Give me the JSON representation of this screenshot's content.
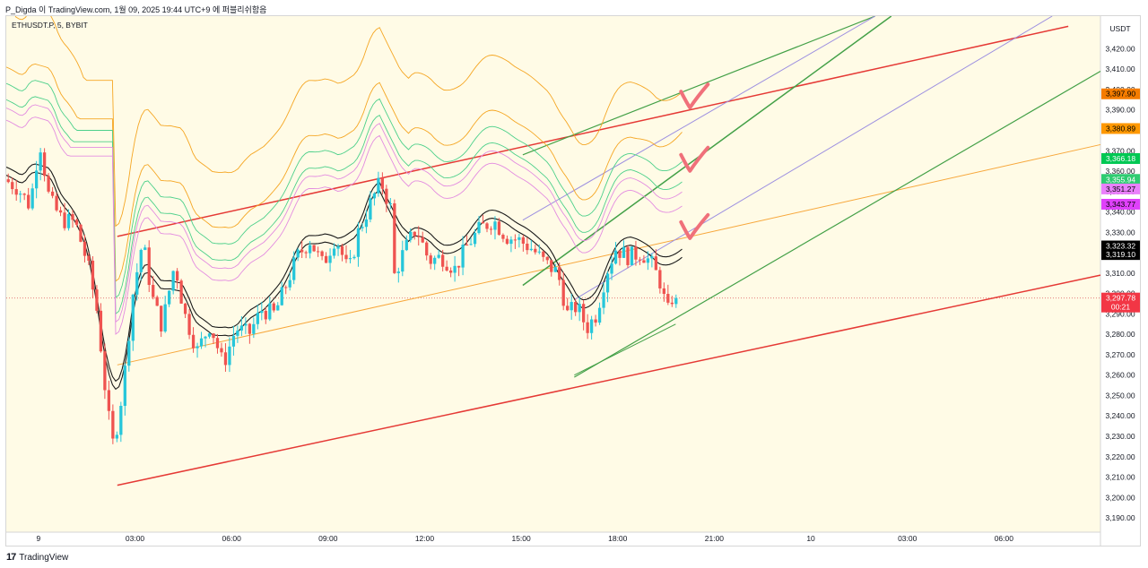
{
  "header": {
    "text": "P_Digda 이 TradingView.com, 1월 09, 2025 19:44 UTC+9 에 퍼블리쉬함음"
  },
  "footer": {
    "logo_glyph": "17",
    "brand": "TradingView"
  },
  "colors": {
    "background": "#fffbe6",
    "candle_up": "#26c6da",
    "candle_down": "#ef5350",
    "channel_red": "#e53935",
    "channel_green": "#43a047",
    "channel_purple": "#9c8fe0",
    "trend_orange": "#f7a73b",
    "band_black": "#1a1a1a",
    "band_orange": "#f5a623",
    "band_green": "#4cd08a",
    "band_pink": "#e38ce0",
    "checkmark": "#f0707a",
    "current_price_line": "#e06b6b"
  },
  "chart_data": {
    "type": "candlestick",
    "symbol_label": "ETHUSDT.P, 5, BYBIT",
    "currency": "USDT",
    "ylim": [
      3183,
      3436
    ],
    "y_ticks": [
      {
        "value": 3190,
        "label": "3,190.00"
      },
      {
        "value": 3200,
        "label": "3,200.00"
      },
      {
        "value": 3210,
        "label": "3,210.00"
      },
      {
        "value": 3220,
        "label": "3,220.00"
      },
      {
        "value": 3230,
        "label": "3,230.00"
      },
      {
        "value": 3240,
        "label": "3,240.00"
      },
      {
        "value": 3250,
        "label": "3,250.00"
      },
      {
        "value": 3260,
        "label": "3,260.00"
      },
      {
        "value": 3270,
        "label": "3,270.00"
      },
      {
        "value": 3280,
        "label": "3,280.00"
      },
      {
        "value": 3290,
        "label": "3,290.00"
      },
      {
        "value": 3300,
        "label": "3,300.00"
      },
      {
        "value": 3310,
        "label": "3,310.00"
      },
      {
        "value": 3320,
        "label": "3,320.00"
      },
      {
        "value": 3330,
        "label": "3,330.00"
      },
      {
        "value": 3340,
        "label": "3,340.00"
      },
      {
        "value": 3350,
        "label": "3,350.00"
      },
      {
        "value": 3360,
        "label": "3,360.00"
      },
      {
        "value": 3370,
        "label": "3,370.00"
      },
      {
        "value": 3380,
        "label": "3,380.00"
      },
      {
        "value": 3390,
        "label": "3,390.00"
      },
      {
        "value": 3400,
        "label": "3,400.00"
      },
      {
        "value": 3410,
        "label": "3,410.00"
      },
      {
        "value": 3420,
        "label": "3,420.00"
      }
    ],
    "x_range_hours": [
      -1,
      33
    ],
    "x_ticks": [
      {
        "hour": 0,
        "label": "9"
      },
      {
        "hour": 3,
        "label": "03:00"
      },
      {
        "hour": 6,
        "label": "06:00"
      },
      {
        "hour": 9,
        "label": "09:00"
      },
      {
        "hour": 12,
        "label": "12:00"
      },
      {
        "hour": 15,
        "label": "15:00"
      },
      {
        "hour": 18,
        "label": "18:00"
      },
      {
        "hour": 21,
        "label": "21:00"
      },
      {
        "hour": 24,
        "label": "10"
      },
      {
        "hour": 27,
        "label": "03:00"
      },
      {
        "hour": 30,
        "label": "06:00"
      }
    ],
    "price_path": [
      [
        -1,
        3356
      ],
      [
        -0.6,
        3352
      ],
      [
        -0.2,
        3343
      ],
      [
        0.1,
        3375
      ],
      [
        0.4,
        3346
      ],
      [
        0.8,
        3336
      ],
      [
        1.2,
        3335
      ],
      [
        1.6,
        3314
      ],
      [
        1.9,
        3290
      ],
      [
        2.1,
        3258
      ],
      [
        2.35,
        3225
      ],
      [
        2.5,
        3235
      ],
      [
        2.7,
        3255
      ],
      [
        3.0,
        3300
      ],
      [
        3.3,
        3326
      ],
      [
        3.6,
        3298
      ],
      [
        3.9,
        3284
      ],
      [
        4.3,
        3315
      ],
      [
        4.6,
        3290
      ],
      [
        5.0,
        3272
      ],
      [
        5.4,
        3285
      ],
      [
        5.8,
        3265
      ],
      [
        6.2,
        3283
      ],
      [
        6.6,
        3280
      ],
      [
        7.0,
        3292
      ],
      [
        7.4,
        3290
      ],
      [
        7.8,
        3306
      ],
      [
        8.1,
        3318
      ],
      [
        8.5,
        3326
      ],
      [
        8.9,
        3314
      ],
      [
        9.3,
        3328
      ],
      [
        9.7,
        3310
      ],
      [
        10.0,
        3330
      ],
      [
        10.4,
        3345
      ],
      [
        10.7,
        3355
      ],
      [
        11.0,
        3342
      ],
      [
        11.1,
        3308
      ],
      [
        11.4,
        3320
      ],
      [
        11.8,
        3332
      ],
      [
        12.2,
        3316
      ],
      [
        12.6,
        3318
      ],
      [
        13.0,
        3312
      ],
      [
        13.4,
        3324
      ],
      [
        13.8,
        3332
      ],
      [
        14.2,
        3336
      ],
      [
        14.6,
        3328
      ],
      [
        15.0,
        3326
      ],
      [
        15.4,
        3322
      ],
      [
        15.8,
        3315
      ],
      [
        16.2,
        3310
      ],
      [
        16.5,
        3290
      ],
      [
        16.8,
        3294
      ],
      [
        17.1,
        3283
      ],
      [
        17.4,
        3290
      ],
      [
        17.7,
        3310
      ],
      [
        18.0,
        3322
      ],
      [
        18.4,
        3318
      ],
      [
        18.8,
        3320
      ],
      [
        19.1,
        3315
      ],
      [
        19.4,
        3305
      ],
      [
        19.6,
        3290
      ],
      [
        19.75,
        3297.78
      ]
    ],
    "band_labels": [
      {
        "value": 3397.9,
        "label": "3,397.90",
        "color": "#f57c00",
        "text_color": "#000000"
      },
      {
        "value": 3380.89,
        "label": "3,380.89",
        "color": "#ff9800",
        "text_color": "#000000"
      },
      {
        "value": 3366.18,
        "label": "3,366.18",
        "color": "#00c853",
        "text_color": "#ffffff"
      },
      {
        "value": 3355.94,
        "label": "3,355.94",
        "color": "#2ecc71",
        "text_color": "#ffffff"
      },
      {
        "value": 3351.27,
        "label": "3,351.27",
        "color": "#ea80fc",
        "text_color": "#000000"
      },
      {
        "value": 3343.77,
        "label": "3,343.77",
        "color": "#e040fb",
        "text_color": "#000000"
      },
      {
        "value": 3323.32,
        "label": "3,323.32",
        "color": "#000000",
        "text_color": "#ffffff"
      },
      {
        "value": 3319.1,
        "label": "3,319.10",
        "color": "#000000",
        "text_color": "#ffffff"
      }
    ],
    "current_price": {
      "value": 3297.78,
      "label": "3,297.78",
      "countdown": "00:21",
      "color": "#f23645"
    },
    "trendlines": [
      {
        "name": "red-channel-lower",
        "color": "#e53935",
        "width": 1.5,
        "points": [
          [
            2.45,
            3206
          ],
          [
            33,
            3309
          ]
        ]
      },
      {
        "name": "red-channel-upper",
        "color": "#e53935",
        "width": 1.5,
        "points": [
          [
            2.45,
            3328
          ],
          [
            32,
            3431
          ]
        ]
      },
      {
        "name": "orange-trend",
        "color": "#f7a73b",
        "width": 1,
        "points": [
          [
            2.45,
            3265
          ],
          [
            33,
            3373
          ]
        ]
      },
      {
        "name": "green-channel-top",
        "color": "#43a047",
        "width": 1.2,
        "points": [
          [
            15.05,
            3368
          ],
          [
            26.0,
            3436
          ]
        ]
      },
      {
        "name": "green-channel-mid",
        "color": "#43a047",
        "width": 1.5,
        "points": [
          [
            15.05,
            3304
          ],
          [
            26.5,
            3436
          ]
        ]
      },
      {
        "name": "green-channel-low",
        "color": "#43a047",
        "width": 1.2,
        "points": [
          [
            16.65,
            3259
          ],
          [
            33,
            3409
          ]
        ]
      },
      {
        "name": "purple-line-upper",
        "color": "#9c8fe0",
        "width": 1,
        "points": [
          [
            15.05,
            3336
          ],
          [
            26.0,
            3436
          ]
        ]
      },
      {
        "name": "purple-line-lower",
        "color": "#9c8fe0",
        "width": 1,
        "points": [
          [
            16.65,
            3297
          ],
          [
            31.5,
            3436
          ]
        ]
      },
      {
        "name": "green-short-parallel",
        "color": "#43a047",
        "width": 1,
        "points": [
          [
            16.65,
            3260
          ],
          [
            19.8,
            3285
          ]
        ]
      }
    ],
    "bands": [
      {
        "name": "orange-top",
        "color": "#f5a623",
        "offset": 75,
        "end": 3400
      },
      {
        "name": "orange-2",
        "color": "#f5a623",
        "offset": 48,
        "end": 3381
      },
      {
        "name": "green-1",
        "color": "#4cd08a",
        "offset": 40,
        "end": 3366
      },
      {
        "name": "green-2",
        "color": "#4cd08a",
        "offset": 32,
        "end": 3356
      },
      {
        "name": "pink-1",
        "color": "#e38ce0",
        "offset": 28,
        "end": 3351
      },
      {
        "name": "pink-2",
        "color": "#e38ce0",
        "offset": 22,
        "end": 3344
      },
      {
        "name": "black-upper",
        "color": "#1a1a1a",
        "offset": 8,
        "end": 3323
      },
      {
        "name": "black-lower",
        "color": "#1a1a1a",
        "offset": 4,
        "end": 3319
      }
    ],
    "checkmarks": [
      {
        "hour": 20.3,
        "value": 3392
      },
      {
        "hour": 20.3,
        "value": 3361
      },
      {
        "hour": 20.3,
        "value": 3328
      }
    ]
  }
}
